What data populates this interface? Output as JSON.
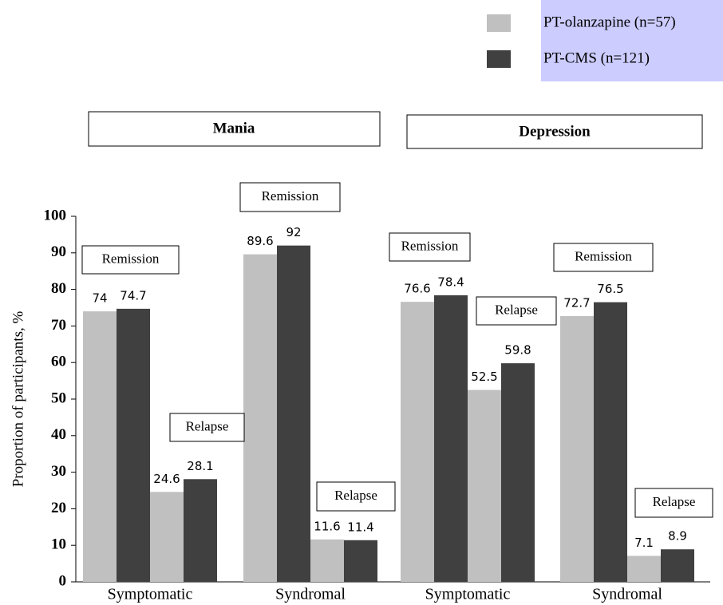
{
  "chart_data": {
    "type": "bar",
    "y_label": "Proportion of participants, %",
    "panels": [
      "Mania",
      "Depression"
    ],
    "x_groups": [
      "Symptomatic",
      "Syndromal",
      "Symptomatic",
      "Syndromal"
    ],
    "categories": [
      "Remission",
      "Relapse",
      "Remission",
      "Relapse",
      "Remission",
      "Relapse",
      "Remission",
      "Relapse"
    ],
    "series": [
      {
        "name": "PT-olanzapine (n=57)",
        "color": "#c0c0c0",
        "values": [
          74,
          24.6,
          89.6,
          11.6,
          76.6,
          52.5,
          72.7,
          7.1
        ]
      },
      {
        "name": "PT-CMS (n=121)",
        "color": "#404040",
        "values": [
          74.7,
          28.1,
          92,
          11.4,
          78.4,
          59.8,
          76.5,
          8.9
        ]
      }
    ],
    "ylim": [
      0,
      100
    ],
    "yticks": [
      0,
      10,
      20,
      30,
      40,
      50,
      60,
      70,
      80,
      90,
      100
    ]
  }
}
